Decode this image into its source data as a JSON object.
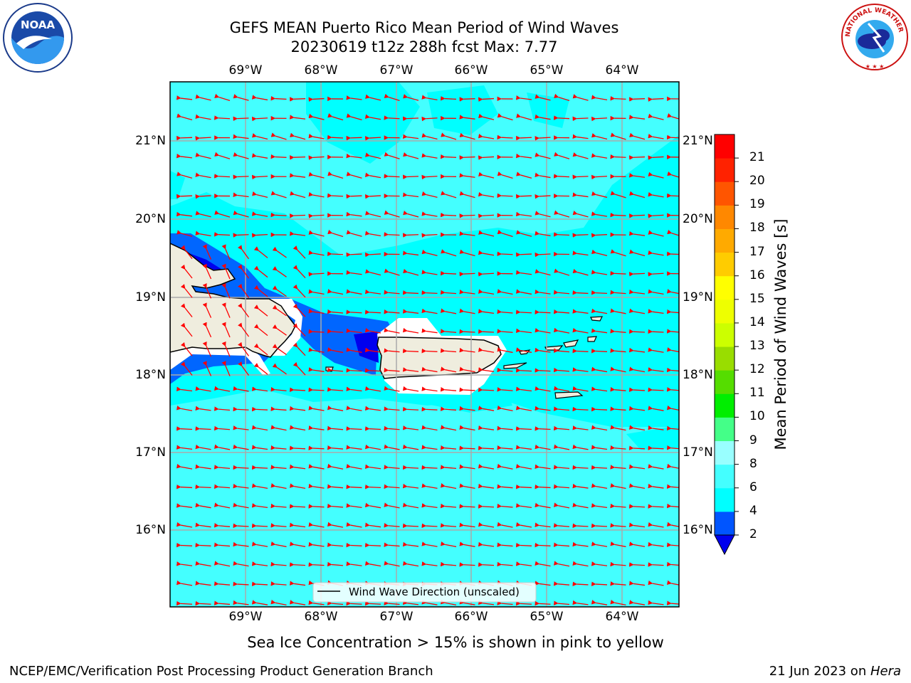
{
  "title": {
    "line1": "GEFS MEAN Puerto Rico Mean Period of Wind Waves",
    "line2": "20230619 t12z 288h fcst   Max: 7.77"
  },
  "map": {
    "lon_labels": [
      "69°W",
      "68°W",
      "67°W",
      "66°W",
      "65°W",
      "64°W"
    ],
    "lat_labels": [
      "21°N",
      "20°N",
      "19°N",
      "18°N",
      "17°N",
      "16°N"
    ],
    "legend_label": "Wind Wave Direction (unscaled)",
    "arrow_color": "#ff0000",
    "land_color": "#efedde",
    "ocean_color": "#00ffff"
  },
  "colorbar": {
    "title": "Mean Period of Wind Waves [s]",
    "tick_labels": [
      "2",
      "4",
      "6",
      "8",
      "9",
      "10",
      "11",
      "12",
      "13",
      "14",
      "15",
      "16",
      "17",
      "18",
      "19",
      "20",
      "21"
    ],
    "colors": [
      "#0055ff",
      "#00ffff",
      "#44ffff",
      "#99ffff",
      "#44ff88",
      "#00ee00",
      "#55dd00",
      "#99dd00",
      "#ccff00",
      "#eeff00",
      "#ffff00",
      "#ffcc00",
      "#ffaa00",
      "#ff8800",
      "#ff5500",
      "#ff2200",
      "#ff0000"
    ],
    "under_color": "#0000ee"
  },
  "footer": {
    "sea_ice_note": "Sea Ice Concentration > 15% is shown in pink to yellow",
    "left": "NCEP/EMC/Verification Post Processing Product Generation Branch",
    "right_date": "21 Jun 2023 on ",
    "right_machine": "Hera"
  },
  "logos": {
    "noaa_text": "NOAA",
    "nws_text": "NATIONAL WEATHER SERVICE"
  }
}
